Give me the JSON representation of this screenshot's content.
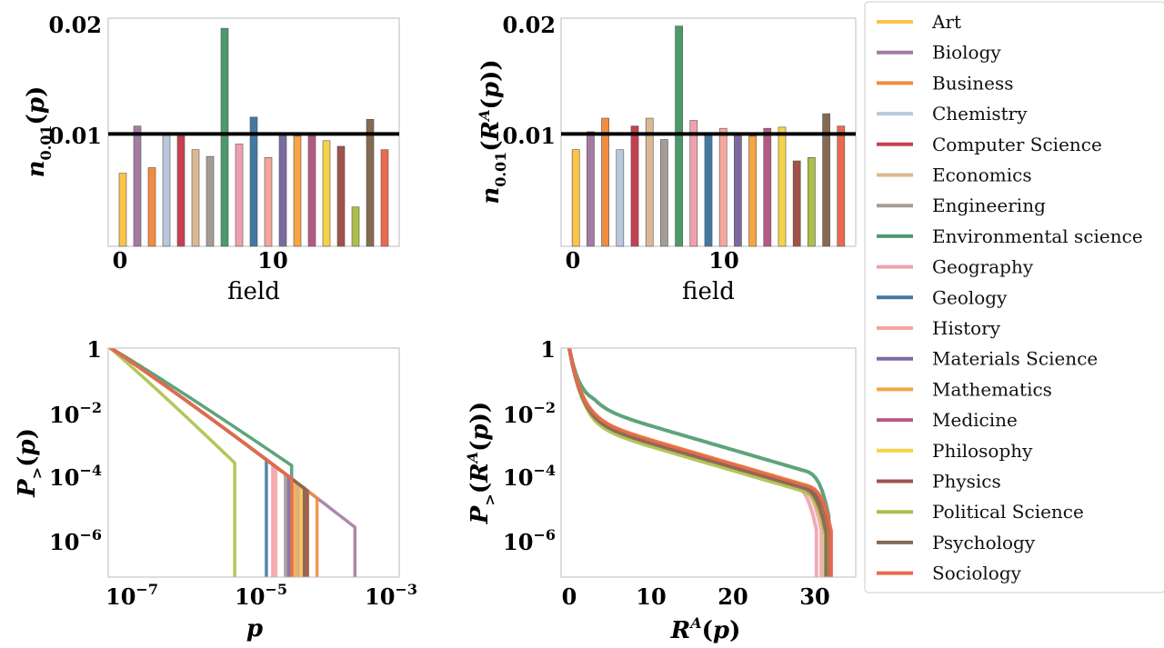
{
  "fields": [
    "Art",
    "Biology",
    "Business",
    "Chemistry",
    "Computer Science",
    "Economics",
    "Engineering",
    "Environmental science",
    "Geography",
    "Geology",
    "History",
    "Materials Science",
    "Mathematics",
    "Medicine",
    "Philosophy",
    "Physics",
    "Political Science",
    "Psychology",
    "Sociology"
  ],
  "colors": [
    "#F9C449",
    "#A47BA3",
    "#F28C3F",
    "#B8C9DC",
    "#C8404F",
    "#D9B991",
    "#A49D95",
    "#4C9A6C",
    "#EFA0AE",
    "#4179A1",
    "#F5A79C",
    "#7B6AA2",
    "#F6A540",
    "#B55A84",
    "#F4D34B",
    "#A0524B",
    "#ABC04A",
    "#866952",
    "#EA6A4F"
  ],
  "chart_data": [
    {
      "type": "bar",
      "xlabel": "field",
      "ylabel": "n_{0.01}(p)",
      "x": [
        0,
        1,
        2,
        3,
        4,
        5,
        6,
        7,
        8,
        9,
        10,
        11,
        12,
        13,
        14,
        15,
        16,
        17,
        18
      ],
      "values": [
        0.0065,
        0.0107,
        0.007,
        0.0101,
        0.0098,
        0.0086,
        0.008,
        0.0194,
        0.0091,
        0.0115,
        0.0079,
        0.01,
        0.0098,
        0.0098,
        0.0094,
        0.0089,
        0.0035,
        0.0113,
        0.0086
      ],
      "xticks": [
        "0",
        "10"
      ],
      "yticks": [
        "0.01",
        "0.02"
      ],
      "reference_line": 0.01,
      "xlim": [
        -1,
        19
      ],
      "ylim": [
        0,
        0.0203
      ]
    },
    {
      "type": "bar",
      "xlabel": "field",
      "ylabel": "n_{0.01}(R^A(p))",
      "x": [
        0,
        1,
        2,
        3,
        4,
        5,
        6,
        7,
        8,
        9,
        10,
        11,
        12,
        13,
        14,
        15,
        16,
        17,
        18
      ],
      "values": [
        0.0086,
        0.0102,
        0.0114,
        0.0086,
        0.0107,
        0.0114,
        0.0095,
        0.0196,
        0.0112,
        0.0101,
        0.0105,
        0.01,
        0.0098,
        0.0105,
        0.0106,
        0.0076,
        0.0079,
        0.0118,
        0.0107
      ],
      "xticks": [
        "0",
        "10"
      ],
      "yticks": [
        "0.01",
        "0.02"
      ],
      "reference_line": 0.01,
      "xlim": [
        -1,
        19
      ],
      "ylim": [
        0,
        0.0203
      ]
    },
    {
      "type": "line",
      "xlabel": "p",
      "ylabel": "P_>(p)",
      "xscale": "log",
      "yscale": "log",
      "xlim_log10": [
        -7.4,
        -2.8
      ],
      "ylim_log10": [
        -7.2,
        0
      ],
      "xticks_log10": [
        -7,
        -5,
        -3
      ],
      "yticks_log10": [
        0,
        -2,
        -4,
        -6
      ],
      "series_end_log10": [
        -4.35,
        -3.5,
        -4.1,
        -4.5,
        -4.4,
        -4.4,
        -4.6,
        -4.5,
        -4.8,
        -4.9,
        -4.75,
        -4.55,
        -4.45,
        -4.3,
        -4.25,
        -4.25,
        -5.4,
        -4.3,
        -4.5
      ],
      "series_slope_scale": [
        1,
        1,
        1,
        1,
        1,
        1,
        1,
        0.9,
        1,
        1,
        1,
        1,
        1,
        1,
        1,
        1,
        1.3,
        1,
        1
      ]
    },
    {
      "type": "line",
      "xlabel": "R^A(p)",
      "ylabel": "P_>(R^A(p))",
      "xscale": "linear",
      "yscale": "log",
      "xlim": [
        -1,
        35
      ],
      "ylim_log10": [
        -7.2,
        0
      ],
      "xticks": [
        0,
        10,
        20,
        30
      ],
      "yticks_log10": [
        0,
        -2,
        -4,
        -6
      ],
      "series_end_x": [
        31.8,
        31.6,
        31.7,
        31.5,
        31.9,
        31.4,
        31.5,
        31.7,
        30.2,
        31.3,
        30.8,
        31.5,
        31.7,
        31.6,
        31.8,
        31.9,
        31.3,
        31.4,
        32.0
      ],
      "series_shift_log10": [
        0.05,
        0,
        0.02,
        -0.05,
        0,
        -0.04,
        -0.06,
        0.5,
        -0.05,
        0,
        -0.02,
        0,
        0.04,
        0,
        0.06,
        0,
        -0.15,
        -0.05,
        0.05
      ]
    }
  ],
  "legend": {
    "placement": "right",
    "entries": [
      "Art",
      "Biology",
      "Business",
      "Chemistry",
      "Computer Science",
      "Economics",
      "Engineering",
      "Environmental science",
      "Geography",
      "Geology",
      "History",
      "Materials Science",
      "Mathematics",
      "Medicine",
      "Philosophy",
      "Physics",
      "Political Science",
      "Psychology",
      "Sociology"
    ]
  }
}
